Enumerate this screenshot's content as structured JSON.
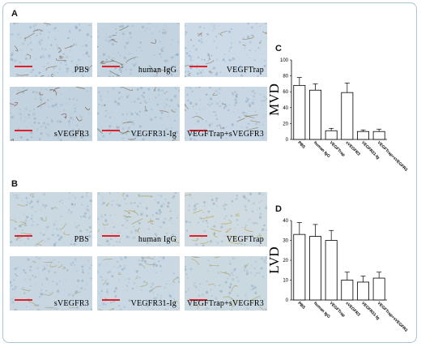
{
  "panels": {
    "A": {
      "letter": "A",
      "images": [
        {
          "label": "PBS",
          "tint": "#c6d6e2",
          "stain": "#7d5c3c"
        },
        {
          "label": "human IgG",
          "tint": "#c3d4e0",
          "stain": "#6c5a48"
        },
        {
          "label": "VEGFTrap",
          "tint": "#cbdae6",
          "stain": "#8a7454"
        },
        {
          "label": "sVEGFR3",
          "tint": "#c2d2de",
          "stain": "#6a3c2c"
        },
        {
          "label": "VEGFR31-Ig",
          "tint": "#c4d4e0",
          "stain": "#7a6448"
        },
        {
          "label": "VEGFTrap+sVEGFR3",
          "tint": "#c8d7e3",
          "stain": "#8a7454"
        }
      ]
    },
    "B": {
      "letter": "B",
      "images": [
        {
          "label": "PBS",
          "tint": "#c9d8e1",
          "stain": "#a99852"
        },
        {
          "label": "human IgG",
          "tint": "#ccd9e0",
          "stain": "#a39346"
        },
        {
          "label": "VEGFTrap",
          "tint": "#cfdbe0",
          "stain": "#b89a3c"
        },
        {
          "label": "sVEGFR3",
          "tint": "#c7d6e1",
          "stain": "#a69a5c"
        },
        {
          "label": "VEGFR31-Ig",
          "tint": "#c9d8e2",
          "stain": "#a8985a"
        },
        {
          "label": "VEGFTrap+sVEGFR3",
          "tint": "#cad8e0",
          "stain": "#ad9a4e"
        }
      ]
    }
  },
  "chart_data": [
    {
      "panel": "C",
      "type": "bar",
      "title": "",
      "ylabel": "MVD",
      "xlabel": "",
      "ylim": [
        0,
        100
      ],
      "yticks": [
        0,
        20,
        40,
        60,
        80,
        100
      ],
      "categories": [
        "PBS",
        "human IgG",
        "VEGFTrap",
        "sVEGFR3",
        "VEGFR31-Ig",
        "VEGFTrap+sVEGFR3"
      ],
      "values": [
        68,
        62,
        11,
        59,
        10,
        10
      ],
      "errors": [
        10,
        8,
        3,
        12,
        2,
        3
      ]
    },
    {
      "panel": "D",
      "type": "bar",
      "title": "",
      "ylabel": "LVD",
      "xlabel": "",
      "ylim": [
        0,
        40
      ],
      "yticks": [
        0,
        10,
        20,
        30,
        40
      ],
      "categories": [
        "PBS",
        "human IgG",
        "VEGFTrap",
        "sVEGFR3",
        "VEGFR31-Ig",
        "VEGFTrap+sVEGFR3"
      ],
      "values": [
        33,
        32,
        30,
        10,
        9,
        11
      ],
      "errors": [
        6,
        6,
        5,
        4,
        3,
        3
      ]
    }
  ]
}
